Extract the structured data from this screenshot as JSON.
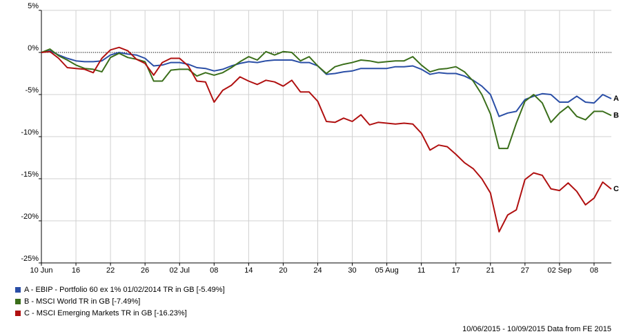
{
  "chart_data": {
    "type": "line",
    "categories": [
      "10 Jun",
      null,
      null,
      null,
      "16",
      null,
      null,
      null,
      "22",
      null,
      null,
      null,
      "26",
      null,
      null,
      null,
      "02 Jul",
      null,
      null,
      null,
      "08",
      null,
      null,
      null,
      "14",
      null,
      null,
      null,
      "20",
      null,
      null,
      null,
      "24",
      null,
      null,
      null,
      "30",
      null,
      null,
      null,
      "05 Aug",
      null,
      null,
      null,
      "11",
      null,
      null,
      null,
      "17",
      null,
      null,
      null,
      "21",
      null,
      null,
      null,
      "27",
      null,
      null,
      null,
      "02 Sep",
      null,
      null,
      null,
      "08",
      null,
      null
    ],
    "ylim": [
      -25,
      5
    ],
    "yticks": [
      {
        "value": 5,
        "label": "5%"
      },
      {
        "value": 0,
        "label": "0%"
      },
      {
        "value": -5,
        "label": "-5%"
      },
      {
        "value": -10,
        "label": "-10%"
      },
      {
        "value": -15,
        "label": "-15%"
      },
      {
        "value": -20,
        "label": "-20%"
      },
      {
        "value": -25,
        "label": "-25%"
      }
    ],
    "grid": true,
    "series": [
      {
        "name": "A - EBIP - Portfolio 60 ex 1% 01/02/2014 TR in GB [-5.49%]",
        "label": "A",
        "color": "#2a4ea6",
        "values": [
          0,
          0.2,
          -0.3,
          -0.7,
          -1.0,
          -1.1,
          -1.1,
          -1.0,
          -0.3,
          0,
          -0.2,
          -0.3,
          -0.7,
          -1.6,
          -1.5,
          -1.2,
          -1.2,
          -1.4,
          -1.8,
          -1.9,
          -2.2,
          -2.0,
          -1.6,
          -1.3,
          -1.1,
          -1.2,
          -1.0,
          -0.9,
          -0.9,
          -0.9,
          -1.2,
          -1.2,
          -1.6,
          -2.6,
          -2.5,
          -2.3,
          -2.2,
          -1.9,
          -1.9,
          -1.9,
          -1.9,
          -1.7,
          -1.7,
          -1.6,
          -2.0,
          -2.6,
          -2.4,
          -2.5,
          -2.5,
          -2.8,
          -3.3,
          -4.0,
          -5.0,
          -7.6,
          -7.2,
          -7.0,
          -5.6,
          -5.2,
          -4.9,
          -5.0,
          -5.9,
          -5.9,
          -5.2,
          -5.9,
          -6.0,
          -5.0,
          -5.49
        ]
      },
      {
        "name": "B - MSCI World TR in GB [-7.49%]",
        "label": "B",
        "color": "#3a6e1a",
        "values": [
          0,
          0.4,
          -0.4,
          -0.9,
          -1.5,
          -1.9,
          -2.0,
          -2.3,
          -0.6,
          -0.1,
          -0.6,
          -0.8,
          -1.1,
          -3.4,
          -3.4,
          -2.1,
          -2.0,
          -2.0,
          -2.8,
          -2.4,
          -2.7,
          -2.4,
          -1.8,
          -1.1,
          -0.5,
          -0.9,
          0.1,
          -0.3,
          0.1,
          0.0,
          -1.0,
          -0.5,
          -1.6,
          -2.5,
          -1.7,
          -1.4,
          -1.2,
          -0.9,
          -1.0,
          -1.2,
          -1.1,
          -1.0,
          -1.0,
          -0.5,
          -1.5,
          -2.3,
          -2.0,
          -1.9,
          -1.7,
          -2.3,
          -3.4,
          -5.0,
          -7.3,
          -11.4,
          -11.4,
          -8.4,
          -5.8,
          -5.0,
          -6.0,
          -8.3,
          -7.2,
          -6.4,
          -7.6,
          -8.0,
          -7.0,
          -7.0,
          -7.49
        ]
      },
      {
        "name": "C - MSCI Emerging Markets TR in GB [-16.23%]",
        "label": "C",
        "color": "#b01010",
        "values": [
          0,
          0.1,
          -0.7,
          -1.8,
          -1.9,
          -2.0,
          -2.4,
          -0.7,
          0.3,
          0.6,
          0.2,
          -0.8,
          -1.3,
          -2.7,
          -1.2,
          -0.7,
          -0.7,
          -1.6,
          -3.4,
          -3.5,
          -5.9,
          -4.5,
          -3.9,
          -2.9,
          -3.4,
          -3.8,
          -3.3,
          -3.5,
          -4.0,
          -3.3,
          -4.7,
          -4.7,
          -5.8,
          -8.2,
          -8.3,
          -7.8,
          -8.2,
          -7.4,
          -8.6,
          -8.3,
          -8.4,
          -8.5,
          -8.4,
          -8.5,
          -9.6,
          -11.6,
          -11.0,
          -11.2,
          -12.1,
          -13.1,
          -13.8,
          -15.0,
          -16.7,
          -21.3,
          -19.3,
          -18.7,
          -15.1,
          -14.3,
          -14.6,
          -16.2,
          -16.4,
          -15.5,
          -16.5,
          -18.1,
          -17.3,
          -15.4,
          -16.23
        ]
      }
    ],
    "footnote": "10/06/2015 - 10/09/2015 Data from FE 2015"
  }
}
